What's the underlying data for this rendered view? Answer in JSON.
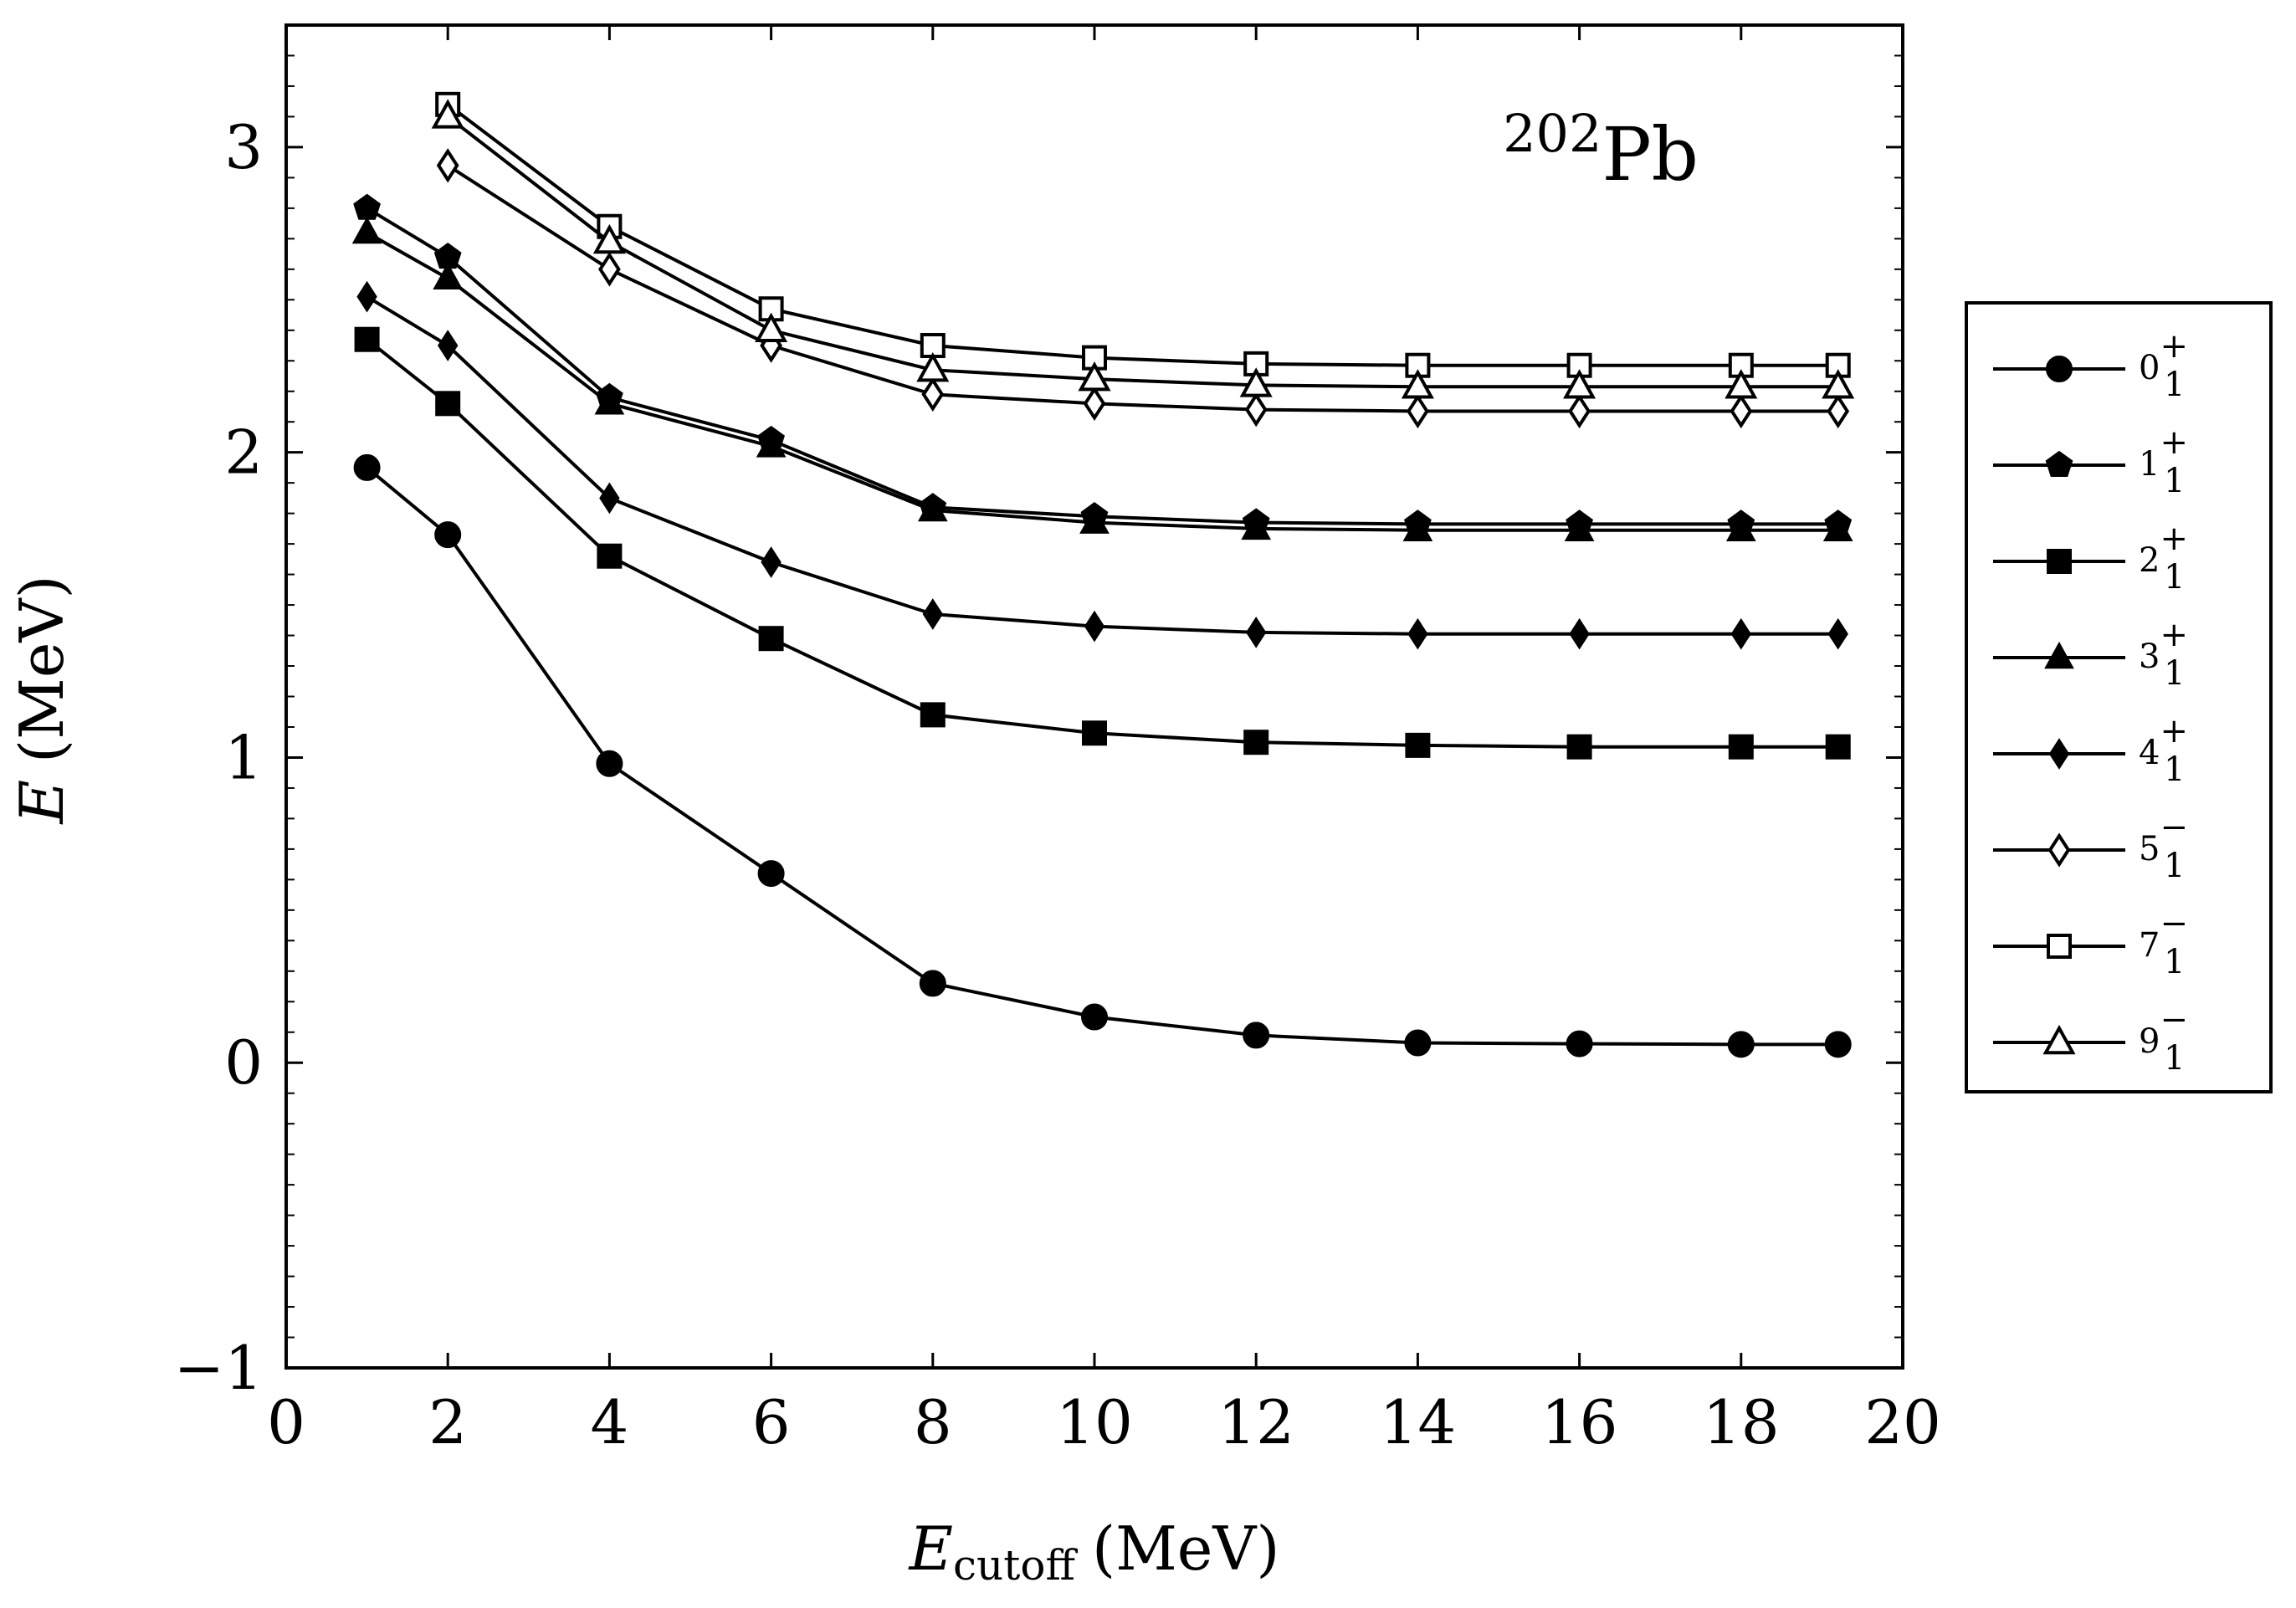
{
  "chart_data": {
    "type": "line",
    "title": {
      "sup": "202",
      "main": "Pb"
    },
    "xlabel": {
      "main": "E",
      "sub": "cutoff",
      "unit": "(MeV)"
    },
    "ylabel": {
      "main": "E",
      "unit": "(MeV)"
    },
    "xlim": [
      0,
      20
    ],
    "ylim": [
      -1,
      3.4
    ],
    "xticks": [
      0,
      2,
      4,
      6,
      8,
      10,
      12,
      14,
      16,
      18,
      20
    ],
    "xtick_labels": [
      "0",
      "2",
      "4",
      "6",
      "8",
      "10",
      "12",
      "14",
      "16",
      "18",
      "20"
    ],
    "yticks": [
      -1,
      0,
      1,
      2,
      3
    ],
    "ytick_labels": [
      "−1",
      "0",
      "1",
      "2",
      "3"
    ],
    "grid": false,
    "legend_position": "right-outside",
    "series": [
      {
        "name": "0_1^+",
        "label": {
          "n": "0",
          "sup": "+",
          "sub": "1"
        },
        "marker": "circle",
        "filled": true,
        "x": [
          1,
          2,
          4,
          6,
          8,
          10,
          12,
          14,
          16,
          18,
          19.2
        ],
        "y": [
          1.95,
          1.73,
          0.98,
          0.62,
          0.26,
          0.15,
          0.09,
          0.065,
          0.062,
          0.06,
          0.06
        ]
      },
      {
        "name": "1_1^+",
        "label": {
          "n": "1",
          "sup": "+",
          "sub": "1"
        },
        "marker": "pentagon",
        "filled": true,
        "x": [
          1,
          2,
          4,
          6,
          8,
          10,
          12,
          14,
          16,
          18,
          19.2
        ],
        "y": [
          2.8,
          2.64,
          2.18,
          2.04,
          1.82,
          1.79,
          1.77,
          1.765,
          1.765,
          1.765,
          1.765
        ]
      },
      {
        "name": "2_1^+",
        "label": {
          "n": "2",
          "sup": "+",
          "sub": "1"
        },
        "marker": "square",
        "filled": true,
        "x": [
          1,
          2,
          4,
          6,
          8,
          10,
          12,
          14,
          16,
          18,
          19.2
        ],
        "y": [
          2.37,
          2.16,
          1.66,
          1.39,
          1.14,
          1.08,
          1.05,
          1.04,
          1.035,
          1.035,
          1.035
        ]
      },
      {
        "name": "3_1^+",
        "label": {
          "n": "3",
          "sup": "+",
          "sub": "1"
        },
        "marker": "triangle",
        "filled": true,
        "x": [
          1,
          2,
          4,
          6,
          8,
          10,
          12,
          14,
          16,
          18,
          19.2
        ],
        "y": [
          2.72,
          2.57,
          2.16,
          2.02,
          1.81,
          1.77,
          1.75,
          1.745,
          1.745,
          1.745,
          1.745
        ]
      },
      {
        "name": "4_1^+",
        "label": {
          "n": "4",
          "sup": "+",
          "sub": "1"
        },
        "marker": "diamond",
        "filled": true,
        "x": [
          1,
          2,
          4,
          6,
          8,
          10,
          12,
          14,
          16,
          18,
          19.2
        ],
        "y": [
          2.51,
          2.35,
          1.85,
          1.64,
          1.47,
          1.43,
          1.41,
          1.405,
          1.405,
          1.405,
          1.405
        ]
      },
      {
        "name": "5_1^-",
        "label": {
          "n": "5",
          "sup": "−",
          "sub": "1"
        },
        "marker": "diamond",
        "filled": false,
        "x": [
          2,
          4,
          6,
          8,
          10,
          12,
          14,
          16,
          18,
          19.2
        ],
        "y": [
          2.94,
          2.6,
          2.35,
          2.19,
          2.16,
          2.14,
          2.135,
          2.135,
          2.135,
          2.135
        ]
      },
      {
        "name": "7_1^-",
        "label": {
          "n": "7",
          "sup": "−",
          "sub": "1"
        },
        "marker": "square",
        "filled": false,
        "x": [
          2,
          4,
          6,
          8,
          10,
          12,
          14,
          16,
          18,
          19.2
        ],
        "y": [
          3.14,
          2.74,
          2.47,
          2.35,
          2.31,
          2.29,
          2.285,
          2.285,
          2.285,
          2.285
        ]
      },
      {
        "name": "9_1^-",
        "label": {
          "n": "9",
          "sup": "−",
          "sub": "1"
        },
        "marker": "triangle",
        "filled": false,
        "x": [
          2,
          4,
          6,
          8,
          10,
          12,
          14,
          16,
          18,
          19.2
        ],
        "y": [
          3.1,
          2.69,
          2.4,
          2.27,
          2.24,
          2.22,
          2.215,
          2.215,
          2.215,
          2.215
        ]
      }
    ]
  }
}
